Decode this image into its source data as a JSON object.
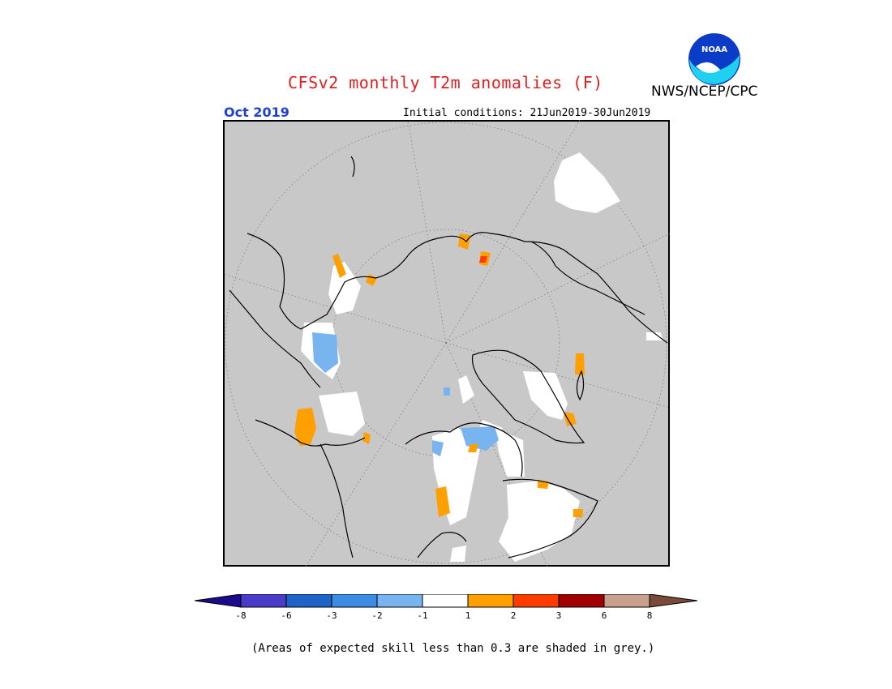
{
  "header": {
    "title": "CFSv2 monthly T2m anomalies (F)",
    "agency": "NWS/NCEP/CPC",
    "logo_text": "NOAA",
    "month": "Oct 2019",
    "initial_conditions": "Initial conditions: 21Jun2019-30Jun2019"
  },
  "colors": {
    "title": "#e02020",
    "month": "#2040d0",
    "land_grey": "#c8c8c8",
    "coast": "#000000",
    "grid": "#808080"
  },
  "colorbar": {
    "ticks": [
      "-8",
      "-6",
      "-3",
      "-2",
      "-1",
      "1",
      "2",
      "3",
      "6",
      "8"
    ],
    "colors": [
      "#1a0a8c",
      "#4a3cc8",
      "#1e64c8",
      "#3c8ce6",
      "#78b4f0",
      "#ffffff",
      "#ffa000",
      "#ff3c00",
      "#a00000",
      "#c8a08c",
      "#7a4a3a"
    ]
  },
  "footnote": "(Areas of expected skill less than 0.3 are shaded in grey.)"
}
